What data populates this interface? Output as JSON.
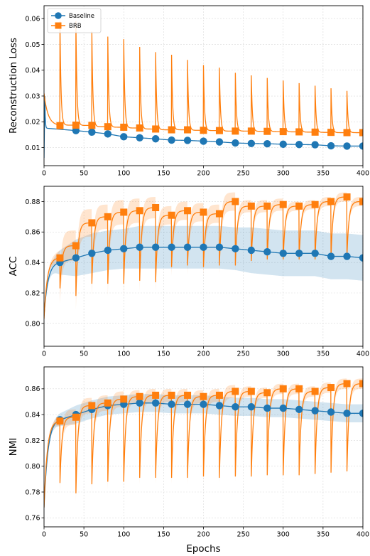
{
  "colors": {
    "baseline": "#1f77b4",
    "brb": "#ff7f0e",
    "grid": "#d9d9d9"
  },
  "legend": {
    "placement": "top-left",
    "entries": [
      {
        "label": "Baseline",
        "marker": "circle",
        "color": "#1f77b4"
      },
      {
        "label": "BRB",
        "marker": "square",
        "color": "#ff7f0e"
      }
    ]
  },
  "chart_data": [
    {
      "type": "line",
      "ylabel": "Reconstruction Loss",
      "xlabel": "",
      "xlim": [
        0,
        400
      ],
      "ylim": [
        0.003,
        0.065
      ],
      "yticks": [
        0.01,
        0.02,
        0.03,
        0.04,
        0.05,
        0.06
      ],
      "ytick_labels": [
        "0.01",
        "0.02",
        "0.03",
        "0.04",
        "0.05",
        "0.06"
      ],
      "xticks": [
        0,
        50,
        100,
        150,
        200,
        250,
        300,
        350,
        400
      ],
      "grid": true,
      "has_legend": true,
      "reset_period": 20,
      "series": [
        {
          "name": "Baseline",
          "marker": "circle",
          "start": 0.006,
          "jump": 0.029,
          "decay": 2.0,
          "early": 0.0185,
          "x": [
            40,
            60,
            80,
            100,
            120,
            140,
            160,
            180,
            200,
            220,
            240,
            260,
            280,
            300,
            320,
            340,
            360,
            380,
            400
          ],
          "values": [
            0.0166,
            0.016,
            0.0153,
            0.0142,
            0.0138,
            0.0134,
            0.0129,
            0.0128,
            0.0125,
            0.0122,
            0.0118,
            0.0116,
            0.0115,
            0.0113,
            0.0112,
            0.0111,
            0.0107,
            0.0106,
            0.0106
          ]
        },
        {
          "name": "BRB",
          "marker": "square",
          "start": 0.031,
          "drop_to": 0.0185,
          "drop_rate": 2.5,
          "x": [
            20,
            40,
            60,
            80,
            100,
            120,
            140,
            160,
            180,
            200,
            220,
            240,
            260,
            280,
            300,
            320,
            340,
            360,
            380,
            400
          ],
          "values": [
            0.0185,
            0.0187,
            0.0186,
            0.0181,
            0.0179,
            0.0176,
            0.0172,
            0.0169,
            0.0169,
            0.0167,
            0.0166,
            0.0164,
            0.0164,
            0.0163,
            0.0162,
            0.0161,
            0.016,
            0.0159,
            0.0158,
            0.0158
          ],
          "spikes": [
            0.059,
            0.059,
            0.055,
            0.053,
            0.052,
            0.049,
            0.047,
            0.046,
            0.044,
            0.042,
            0.041,
            0.039,
            0.038,
            0.037,
            0.036,
            0.035,
            0.034,
            0.033,
            0.032
          ],
          "spike_decay": 1.3
        }
      ]
    },
    {
      "type": "line",
      "ylabel": "ACC",
      "xlabel": "",
      "xlim": [
        0,
        400
      ],
      "ylim": [
        0.785,
        0.89
      ],
      "yticks": [
        0.8,
        0.82,
        0.84,
        0.86,
        0.88
      ],
      "ytick_labels": [
        "0.80",
        "0.82",
        "0.84",
        "0.86",
        "0.88"
      ],
      "xticks": [
        0,
        50,
        100,
        150,
        200,
        250,
        300,
        350,
        400
      ],
      "grid": true,
      "has_legend": false,
      "reset_period": 20,
      "series": [
        {
          "name": "Baseline",
          "marker": "circle",
          "start": 0.805,
          "rise_rate": 15,
          "x": [
            20,
            40,
            60,
            80,
            100,
            120,
            140,
            160,
            180,
            200,
            220,
            240,
            260,
            280,
            300,
            320,
            340,
            360,
            380,
            400
          ],
          "values": [
            0.84,
            0.843,
            0.846,
            0.848,
            0.849,
            0.85,
            0.85,
            0.85,
            0.85,
            0.85,
            0.85,
            0.849,
            0.848,
            0.847,
            0.846,
            0.846,
            0.846,
            0.844,
            0.844,
            0.843
          ],
          "band_halfwidth": [
            0.008,
            0.012,
            0.013,
            0.013,
            0.013,
            0.014,
            0.014,
            0.014,
            0.014,
            0.014,
            0.014,
            0.014,
            0.015,
            0.015,
            0.015,
            0.015,
            0.015,
            0.015,
            0.015,
            0.015
          ]
        },
        {
          "name": "BRB",
          "marker": "square",
          "start": 0.803,
          "recover_rate": 2.5,
          "x": [
            20,
            40,
            60,
            80,
            100,
            120,
            140,
            160,
            180,
            200,
            220,
            240,
            260,
            280,
            300,
            320,
            340,
            360,
            380,
            400
          ],
          "values": [
            0.843,
            0.851,
            0.866,
            0.87,
            0.873,
            0.874,
            0.876,
            0.871,
            0.874,
            0.873,
            0.872,
            0.88,
            0.877,
            0.877,
            0.878,
            0.877,
            0.878,
            0.88,
            0.883,
            0.88
          ],
          "dips": [
            0.823,
            0.818,
            0.826,
            0.826,
            0.826,
            0.828,
            0.827,
            0.837,
            0.838,
            0.837,
            0.838,
            0.838,
            0.841,
            0.842,
            0.842,
            0.842,
            0.842,
            0.843,
            0.844
          ],
          "band_halfwidth": [
            0.005,
            0.01,
            0.009,
            0.008,
            0.008,
            0.008,
            0.007,
            0.006,
            0.006,
            0.006,
            0.006,
            0.006,
            0.004,
            0.004,
            0.004,
            0.003,
            0.003,
            0.003,
            0.003,
            0.003
          ]
        }
      ]
    },
    {
      "type": "line",
      "ylabel": "NMI",
      "xlabel": "Epochs",
      "xlim": [
        0,
        400
      ],
      "ylim": [
        0.753,
        0.877
      ],
      "yticks": [
        0.76,
        0.78,
        0.8,
        0.82,
        0.84,
        0.86
      ],
      "ytick_labels": [
        "0.76",
        "0.78",
        "0.80",
        "0.82",
        "0.84",
        "0.86"
      ],
      "xticks": [
        0,
        50,
        100,
        150,
        200,
        250,
        300,
        350,
        400
      ],
      "grid": true,
      "has_legend": false,
      "reset_period": 20,
      "series": [
        {
          "name": "Baseline",
          "marker": "circle",
          "start": 0.768,
          "rise_rate": 12,
          "x": [
            20,
            40,
            60,
            80,
            100,
            120,
            140,
            160,
            180,
            200,
            220,
            240,
            260,
            280,
            300,
            320,
            340,
            360,
            380,
            400
          ],
          "values": [
            0.836,
            0.84,
            0.844,
            0.847,
            0.848,
            0.849,
            0.849,
            0.848,
            0.848,
            0.848,
            0.847,
            0.846,
            0.846,
            0.845,
            0.845,
            0.844,
            0.843,
            0.842,
            0.841,
            0.841
          ],
          "band_halfwidth": [
            0.005,
            0.007,
            0.007,
            0.007,
            0.007,
            0.007,
            0.007,
            0.007,
            0.007,
            0.007,
            0.007,
            0.007,
            0.007,
            0.007,
            0.007,
            0.007,
            0.007,
            0.007,
            0.007,
            0.007
          ]
        },
        {
          "name": "BRB",
          "marker": "square",
          "start": 0.768,
          "recover_rate": 2.5,
          "x": [
            20,
            40,
            60,
            80,
            100,
            120,
            140,
            160,
            180,
            200,
            220,
            240,
            260,
            280,
            300,
            320,
            340,
            360,
            380,
            400
          ],
          "values": [
            0.835,
            0.838,
            0.847,
            0.849,
            0.852,
            0.854,
            0.855,
            0.855,
            0.855,
            0.854,
            0.855,
            0.858,
            0.858,
            0.857,
            0.86,
            0.86,
            0.858,
            0.861,
            0.864,
            0.864
          ],
          "dips": [
            0.787,
            0.779,
            0.786,
            0.788,
            0.788,
            0.791,
            0.791,
            0.791,
            0.791,
            0.792,
            0.791,
            0.792,
            0.792,
            0.793,
            0.793,
            0.793,
            0.794,
            0.795,
            0.796
          ],
          "band_halfwidth": [
            0.004,
            0.006,
            0.006,
            0.006,
            0.006,
            0.005,
            0.005,
            0.005,
            0.005,
            0.005,
            0.005,
            0.005,
            0.004,
            0.004,
            0.004,
            0.004,
            0.004,
            0.004,
            0.004,
            0.004
          ]
        }
      ]
    }
  ]
}
